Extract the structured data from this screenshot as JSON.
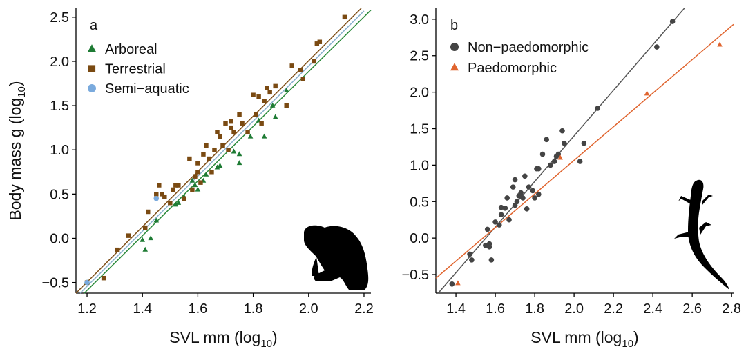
{
  "chart_data": [
    {
      "type": "scatter",
      "panel_label": "a",
      "x_label": {
        "text": "SVL mm (log",
        "sub": "10",
        "end": ")"
      },
      "y_label": {
        "text": "Body mass g (log",
        "sub": "10",
        "end": ")"
      },
      "xlim": [
        1.16,
        2.225
      ],
      "ylim": [
        -0.62,
        2.6
      ],
      "xticks": [
        1.2,
        1.4,
        1.6,
        1.8,
        {
          "value": 2,
          "label": "2.0"
        },
        2.2
      ],
      "yticks": [
        {
          "value": -0.5,
          "label": "−0.5"
        },
        {
          "value": 0,
          "label": "0.0"
        },
        0.5,
        {
          "value": 1,
          "label": "1.0"
        },
        1.5,
        {
          "value": 2,
          "label": "2.0"
        },
        2.5
      ],
      "series": [
        {
          "name": "Arboreal",
          "color": "#1e7b34",
          "marker": "triangle",
          "x": [
            1.2,
            1.4,
            1.41,
            1.43,
            1.45,
            1.52,
            1.53,
            1.55,
            1.58,
            1.59,
            1.6,
            1.62,
            1.63,
            1.67,
            1.68,
            1.73,
            1.75,
            1.75,
            1.79,
            1.82,
            1.84,
            1.87,
            1.88,
            1.92
          ],
          "values": [
            -0.5,
            -0.02,
            -0.13,
            0.0,
            0.2,
            0.38,
            0.4,
            0.47,
            0.65,
            0.6,
            0.55,
            0.65,
            0.72,
            0.8,
            0.82,
            0.98,
            0.85,
            0.95,
            1.15,
            1.33,
            1.15,
            1.5,
            1.37,
            1.67
          ]
        },
        {
          "name": "Terrestrial",
          "color": "#7a4a12",
          "marker": "square",
          "x": [
            1.2,
            1.26,
            1.31,
            1.35,
            1.41,
            1.42,
            1.45,
            1.46,
            1.47,
            1.48,
            1.5,
            1.51,
            1.52,
            1.53,
            1.55,
            1.57,
            1.58,
            1.59,
            1.6,
            1.6,
            1.61,
            1.62,
            1.63,
            1.64,
            1.65,
            1.66,
            1.67,
            1.68,
            1.69,
            1.7,
            1.71,
            1.72,
            1.72,
            1.73,
            1.75,
            1.76,
            1.78,
            1.8,
            1.81,
            1.82,
            1.83,
            1.84,
            1.85,
            1.86,
            1.88,
            1.92,
            1.94,
            1.97,
            1.98,
            2.02,
            2.03,
            2.04,
            2.13
          ],
          "values": [
            -0.5,
            -0.45,
            -0.13,
            0.03,
            0.12,
            0.3,
            0.5,
            0.6,
            0.5,
            0.47,
            0.4,
            0.55,
            0.6,
            0.6,
            0.45,
            0.9,
            0.55,
            0.7,
            0.75,
            0.85,
            0.63,
            0.95,
            1.05,
            0.9,
            0.75,
            1.0,
            1.2,
            1.15,
            1.05,
            1.3,
            1.0,
            1.25,
            1.32,
            1.2,
            1.4,
            1.3,
            1.2,
            1.62,
            1.4,
            1.6,
            1.3,
            1.55,
            1.7,
            1.65,
            1.72,
            1.5,
            1.95,
            1.9,
            1.8,
            2.0,
            2.2,
            2.22,
            2.5
          ]
        },
        {
          "name": "Semi−aquatic",
          "color": "#7aaadd",
          "marker": "circle",
          "x": [
            1.2,
            1.45
          ],
          "values": [
            -0.5,
            0.45
          ]
        }
      ],
      "fits": [
        {
          "color": "#7a4a12",
          "x": [
            1.16,
            2.19
          ],
          "values": [
            -0.62,
            2.6
          ]
        },
        {
          "color": "#8ab0cc",
          "x": [
            1.175,
            2.2
          ],
          "values": [
            -0.62,
            2.57
          ]
        },
        {
          "color": "#2a8a3a",
          "x": [
            1.19,
            2.225
          ],
          "values": [
            -0.62,
            2.58
          ]
        }
      ]
    },
    {
      "type": "scatter",
      "panel_label": "b",
      "x_label": {
        "text": "SVL mm (log",
        "sub": "10",
        "end": ")"
      },
      "xlim": [
        1.298,
        2.81
      ],
      "ylim": [
        -0.755,
        3.15
      ],
      "xticks": [
        1.4,
        1.6,
        1.8,
        {
          "value": 2,
          "label": "2.0"
        },
        2.2,
        2.4,
        2.6,
        2.8
      ],
      "yticks": [
        {
          "value": -0.5,
          "label": "−0.5"
        },
        {
          "value": 0,
          "label": "0.0"
        },
        0.5,
        {
          "value": 1,
          "label": "1.0"
        },
        1.5,
        {
          "value": 2,
          "label": "2.0"
        },
        2.5,
        {
          "value": 3,
          "label": "3.0"
        }
      ],
      "series": [
        {
          "name": "Non−paedomorphic",
          "color": "#444444",
          "marker": "circle",
          "x": [
            1.38,
            1.47,
            1.48,
            1.55,
            1.56,
            1.57,
            1.57,
            1.58,
            1.6,
            1.62,
            1.63,
            1.63,
            1.65,
            1.66,
            1.67,
            1.69,
            1.7,
            1.7,
            1.71,
            1.72,
            1.73,
            1.74,
            1.75,
            1.76,
            1.77,
            1.79,
            1.8,
            1.81,
            1.82,
            1.82,
            1.84,
            1.86,
            1.88,
            1.9,
            1.91,
            1.92,
            1.94,
            1.95,
            2.03,
            2.05,
            2.12,
            2.42,
            2.5
          ],
          "values": [
            -0.63,
            -0.22,
            -0.3,
            -0.1,
            0.12,
            -0.12,
            -0.08,
            -0.3,
            0.22,
            0.18,
            0.32,
            0.42,
            0.41,
            0.55,
            0.25,
            0.7,
            0.45,
            0.8,
            0.5,
            0.58,
            0.62,
            0.55,
            0.85,
            0.4,
            0.7,
            0.65,
            0.55,
            0.95,
            0.95,
            0.6,
            1.15,
            1.35,
            1.0,
            1.05,
            1.12,
            1.15,
            1.47,
            1.3,
            1.05,
            1.3,
            1.78,
            2.62,
            2.97
          ]
        },
        {
          "name": "Paedomorphic",
          "color": "#e0642e",
          "marker": "triangle",
          "x": [
            1.41,
            1.93,
            2.37,
            2.74
          ],
          "values": [
            -0.62,
            1.1,
            1.98,
            2.65
          ]
        }
      ],
      "fits": [
        {
          "color": "#555555",
          "x": [
            1.31,
            2.56
          ],
          "values": [
            -0.755,
            3.15
          ]
        },
        {
          "color": "#e0642e",
          "x": [
            1.298,
            2.81
          ],
          "values": [
            -0.55,
            2.93
          ]
        }
      ]
    }
  ]
}
